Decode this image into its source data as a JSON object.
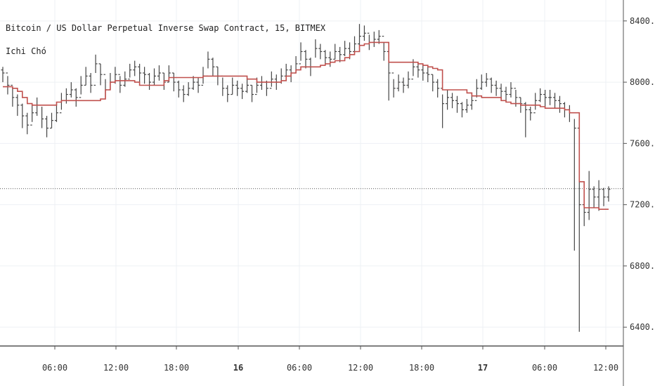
{
  "chart_data": {
    "type": "ohlc",
    "title": "Bitcoin / US Dollar Perpetual Inverse Swap Contract, 15, BITMEX",
    "indicator": "Ichi Chó",
    "ylim": [
      6300,
      8500
    ],
    "y_ticks": [
      "8400.0",
      "8000.0",
      "7600.0",
      "7200.0",
      "6800.0",
      "6400.0"
    ],
    "y_tick_values": [
      8400,
      8000,
      7600,
      7200,
      6800,
      6400
    ],
    "x_ticks": [
      "06:00",
      "12:00",
      "18:00",
      "16",
      "06:00",
      "12:00",
      "18:00",
      "17",
      "06:00",
      "12:00"
    ],
    "x_tick_bold": [
      false,
      false,
      false,
      true,
      false,
      false,
      false,
      true,
      false,
      false
    ],
    "last_price": 7305,
    "grid": true,
    "colors": {
      "bars": "#444444",
      "indicator": "#c0504d",
      "grid": "#eef0f4",
      "axis": "#555555",
      "last_price_line": "#555555"
    },
    "series": [
      {
        "name": "Bitcoin / US Dollar Perpetual Inverse Swap Contract, 15, BITMEX",
        "close": [
          8060,
          7980,
          7900,
          7850,
          7780,
          7720,
          7800,
          7850,
          7760,
          7700,
          7750,
          7800,
          7880,
          7920,
          7950,
          7900,
          7980,
          8040,
          7980,
          8120,
          8050,
          7950,
          8000,
          8050,
          7980,
          8020,
          8080,
          8100,
          8060,
          8050,
          8000,
          8040,
          8060,
          8000,
          8060,
          8000,
          7950,
          7920,
          7960,
          8000,
          7980,
          8040,
          8150,
          8100,
          8040,
          7960,
          7920,
          7980,
          7960,
          7940,
          7980,
          7920,
          7980,
          8000,
          7960,
          8020,
          8000,
          8040,
          8080,
          8060,
          8120,
          8200,
          8150,
          8100,
          8220,
          8200,
          8160,
          8150,
          8200,
          8180,
          8220,
          8200,
          8250,
          8300,
          8320,
          8260,
          8280,
          8300,
          8200,
          8060,
          7960,
          8000,
          7980,
          8020,
          8100,
          8080,
          8060,
          8050,
          8000,
          7960,
          7860,
          7900,
          7880,
          7860,
          7820,
          7850,
          7880,
          7960,
          8000,
          8020,
          7980,
          7960,
          7940,
          7920,
          7960,
          7900,
          7860,
          7820,
          7800,
          7880,
          7920,
          7900,
          7900,
          7880,
          7860,
          7820,
          7800,
          7700,
          7200,
          7150,
          7300,
          7250,
          7300,
          7250,
          7300
        ],
        "high": [
          8100,
          8040,
          7960,
          7920,
          7860,
          7800,
          7860,
          7900,
          7840,
          7780,
          7800,
          7860,
          7930,
          7960,
          8000,
          7960,
          8040,
          8100,
          8060,
          8180,
          8120,
          8020,
          8060,
          8100,
          8040,
          8070,
          8120,
          8140,
          8120,
          8100,
          8060,
          8090,
          8110,
          8060,
          8110,
          8060,
          8010,
          7980,
          8000,
          8040,
          8030,
          8100,
          8200,
          8160,
          8100,
          8030,
          7980,
          8030,
          8010,
          7990,
          8030,
          7980,
          8030,
          8040,
          8010,
          8070,
          8050,
          8090,
          8120,
          8110,
          8170,
          8260,
          8210,
          8160,
          8280,
          8250,
          8210,
          8200,
          8250,
          8230,
          8270,
          8260,
          8300,
          8380,
          8370,
          8310,
          8330,
          8340,
          8260,
          8140,
          8020,
          8050,
          8030,
          8070,
          8150,
          8130,
          8110,
          8100,
          8050,
          8020,
          7920,
          7950,
          7930,
          7910,
          7870,
          7890,
          7930,
          8020,
          8050,
          8060,
          8030,
          8010,
          7990,
          7970,
          8000,
          7950,
          7900,
          7870,
          7840,
          7930,
          7960,
          7950,
          7950,
          7930,
          7910,
          7870,
          7850,
          7760,
          7400,
          7250,
          7420,
          7320,
          7360,
          7310,
          7320
        ],
        "low": [
          8000,
          7920,
          7840,
          7780,
          7700,
          7660,
          7740,
          7780,
          7700,
          7640,
          7700,
          7740,
          7820,
          7860,
          7900,
          7840,
          7920,
          7980,
          7930,
          8060,
          7980,
          7900,
          7950,
          7990,
          7930,
          7970,
          8030,
          8040,
          8000,
          7990,
          7950,
          7980,
          8010,
          7950,
          8000,
          7940,
          7900,
          7870,
          7910,
          7950,
          7930,
          7990,
          8090,
          8040,
          7980,
          7910,
          7870,
          7920,
          7910,
          7890,
          7930,
          7870,
          7930,
          7950,
          7910,
          7970,
          7950,
          7990,
          8030,
          8000,
          8060,
          8140,
          8090,
          8040,
          8160,
          8150,
          8110,
          8100,
          8150,
          8130,
          8170,
          8150,
          8190,
          8240,
          8270,
          8210,
          8230,
          8250,
          8140,
          7880,
          7900,
          7940,
          7930,
          7960,
          8040,
          8030,
          8010,
          8000,
          7940,
          7900,
          7700,
          7820,
          7830,
          7800,
          7770,
          7800,
          7820,
          7900,
          7950,
          7970,
          7930,
          7910,
          7890,
          7870,
          7900,
          7840,
          7800,
          7640,
          7750,
          7820,
          7870,
          7840,
          7850,
          7830,
          7800,
          7770,
          7740,
          6900,
          6370,
          7060,
          7100,
          7180,
          7160,
          7190,
          7220
        ]
      },
      {
        "name": "Ichi Chó",
        "values": [
          7970,
          7970,
          7960,
          7940,
          7900,
          7860,
          7850,
          7850,
          7850,
          7850,
          7850,
          7870,
          7880,
          7880,
          7880,
          7880,
          7880,
          7880,
          7880,
          7880,
          7890,
          7950,
          8000,
          8010,
          8010,
          8010,
          8010,
          8000,
          7980,
          7980,
          7980,
          7980,
          7980,
          8010,
          8030,
          8030,
          8030,
          8030,
          8030,
          8030,
          8030,
          8040,
          8040,
          8040,
          8040,
          8040,
          8040,
          8040,
          8040,
          8040,
          8020,
          8020,
          8000,
          8000,
          8000,
          8000,
          8000,
          8010,
          8040,
          8060,
          8080,
          8100,
          8100,
          8100,
          8100,
          8110,
          8120,
          8130,
          8140,
          8140,
          8160,
          8180,
          8200,
          8240,
          8250,
          8260,
          8260,
          8260,
          8260,
          8130,
          8130,
          8130,
          8130,
          8130,
          8130,
          8120,
          8110,
          8100,
          8090,
          8080,
          7950,
          7950,
          7950,
          7950,
          7950,
          7930,
          7910,
          7910,
          7900,
          7900,
          7900,
          7900,
          7880,
          7870,
          7860,
          7860,
          7850,
          7850,
          7850,
          7850,
          7840,
          7830,
          7830,
          7830,
          7830,
          7820,
          7800,
          7800,
          7350,
          7180,
          7180,
          7180,
          7170,
          7170,
          7170
        ]
      }
    ]
  }
}
